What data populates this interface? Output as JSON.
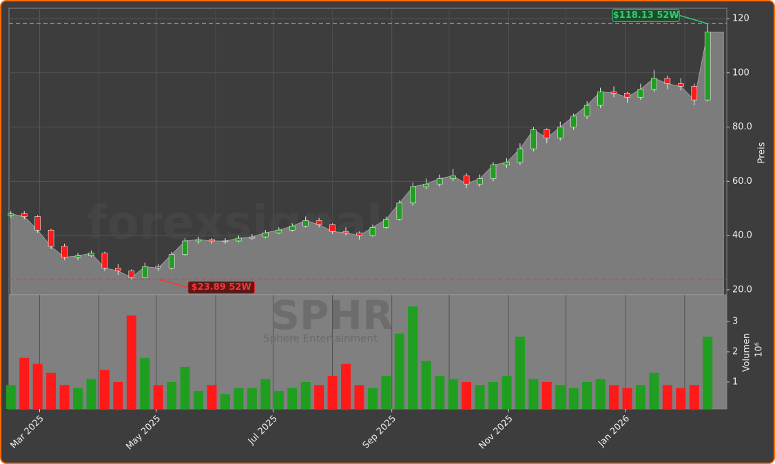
{
  "chart_data": {
    "type": "candlestick",
    "watermark": "forexsignale.trade",
    "symbol": "SPHR",
    "company": "Sphere Entertainment",
    "y_label": "Preis",
    "volume_label": "Volumen",
    "volume_offset_label": "10⁶",
    "up_color": "#1f9e1f",
    "down_color": "#ff1a1a",
    "fill_color": "#808080",
    "grid": true,
    "x": [
      "2025-02-14",
      "2025-02-21",
      "2025-02-28",
      "2025-03-07",
      "2025-03-14",
      "2025-03-21",
      "2025-03-28",
      "2025-04-04",
      "2025-04-11",
      "2025-04-18",
      "2025-04-25",
      "2025-05-02",
      "2025-05-09",
      "2025-05-16",
      "2025-05-23",
      "2025-05-30",
      "2025-06-06",
      "2025-06-13",
      "2025-06-20",
      "2025-06-27",
      "2025-07-04",
      "2025-07-11",
      "2025-07-18",
      "2025-07-25",
      "2025-08-01",
      "2025-08-08",
      "2025-08-15",
      "2025-08-22",
      "2025-08-29",
      "2025-09-05",
      "2025-09-12",
      "2025-09-19",
      "2025-09-26",
      "2025-10-03",
      "2025-10-10",
      "2025-10-17",
      "2025-10-24",
      "2025-10-31",
      "2025-11-07",
      "2025-11-14",
      "2025-11-21",
      "2025-11-28",
      "2025-12-05",
      "2025-12-12",
      "2025-12-19",
      "2025-12-26",
      "2026-01-02",
      "2026-01-09",
      "2026-01-16",
      "2026-01-23",
      "2026-01-30",
      "2026-02-06",
      "2026-02-13"
    ],
    "open": [
      47.5,
      48,
      47,
      42,
      36,
      32,
      32.5,
      33.5,
      28,
      27,
      24.5,
      28.5,
      28,
      33,
      38,
      38.5,
      38,
      38,
      39,
      39.5,
      41,
      42,
      43.5,
      45.5,
      44,
      41.5,
      41,
      40,
      43,
      46,
      52,
      58,
      59,
      61,
      62,
      59,
      61,
      66,
      67,
      72,
      79,
      76,
      80,
      84,
      88,
      93,
      92.5,
      91,
      94,
      98,
      96,
      95,
      90
    ],
    "high": [
      49,
      49,
      47.5,
      42.5,
      37,
      33.5,
      34.5,
      34,
      29.5,
      27.5,
      30,
      29.5,
      34,
      39,
      39.5,
      39,
      39,
      40,
      40.5,
      42,
      43,
      44.5,
      47,
      46.5,
      44.5,
      43,
      41.5,
      44,
      47,
      53,
      59.5,
      61,
      62.5,
      64.5,
      63,
      62.5,
      67,
      68.5,
      74,
      80,
      79.5,
      82,
      85,
      89.5,
      94.5,
      95,
      93,
      96,
      101,
      99,
      98,
      96,
      118.13
    ],
    "low": [
      46.5,
      46,
      41,
      35,
      31,
      31,
      32,
      27,
      25.5,
      23.89,
      24.5,
      27,
      27.5,
      32.5,
      37,
      37,
      37,
      37.5,
      38.5,
      39,
      40.5,
      41.5,
      43,
      43,
      40.5,
      40,
      38.5,
      39.5,
      42.5,
      45.5,
      51,
      57,
      58,
      60,
      57.5,
      58,
      60,
      65,
      66,
      71,
      74,
      75,
      79,
      83,
      87,
      91,
      89,
      90,
      93,
      94,
      93.5,
      88,
      89.5
    ],
    "close": [
      48,
      47,
      42,
      36,
      32,
      32.5,
      33.5,
      28,
      27,
      24.5,
      28.5,
      28,
      33,
      38,
      38.5,
      38,
      38,
      39,
      39.5,
      41,
      42,
      43.5,
      45.5,
      44,
      41.5,
      41,
      40,
      43,
      46,
      52,
      58,
      59,
      61,
      62,
      59,
      61,
      66,
      67,
      72,
      79,
      76,
      80,
      84,
      88,
      93,
      92.5,
      91,
      94,
      98,
      96,
      95,
      90,
      115
    ],
    "volume": [
      0.9,
      1.8,
      1.6,
      1.3,
      0.9,
      0.8,
      1.1,
      1.4,
      1.0,
      3.2,
      1.8,
      0.9,
      1.0,
      1.5,
      0.7,
      0.9,
      0.6,
      0.8,
      0.8,
      1.1,
      0.7,
      0.8,
      1.0,
      0.9,
      1.2,
      1.6,
      0.9,
      0.8,
      1.2,
      2.6,
      3.5,
      1.7,
      1.2,
      1.1,
      1.0,
      0.9,
      1.0,
      1.2,
      2.5,
      1.1,
      1.0,
      0.9,
      0.8,
      1.0,
      1.1,
      0.9,
      0.8,
      0.9,
      1.3,
      0.9,
      0.8,
      0.9,
      2.5
    ],
    "xlim": [
      "2025-02-13",
      "2026-02-23"
    ],
    "xticks": [
      {
        "value": "2025-03-01",
        "label": "Mar 2025"
      },
      {
        "value": "2025-05-01",
        "label": "May 2025"
      },
      {
        "value": "2025-07-01",
        "label": "Jul 2025"
      },
      {
        "value": "2025-09-01",
        "label": "Sep 2025"
      },
      {
        "value": "2025-11-01",
        "label": "Nov 2025"
      },
      {
        "value": "2026-01-01",
        "label": "Jan 2026"
      }
    ],
    "xminorticks": [
      "2025-04-01",
      "2025-06-01",
      "2025-08-01",
      "2025-10-01",
      "2025-12-01",
      "2026-02-01"
    ],
    "ylim": [
      18.2,
      123.8
    ],
    "yticks": [
      {
        "value": 20,
        "label": "20.0"
      },
      {
        "value": 40,
        "label": "40.0"
      },
      {
        "value": 60,
        "label": "60.0"
      },
      {
        "value": 80,
        "label": "80.0"
      },
      {
        "value": 100,
        "label": "100"
      },
      120
    ],
    "volume_ylim": [
      0.11,
      3.89
    ],
    "volume_yticks": [
      1,
      2,
      3
    ],
    "annotations": [
      {
        "label": "$118.13 52W",
        "value": 118.13,
        "x": "2026-02-13",
        "color": "#2ecc71"
      },
      {
        "label": "$23.89 52W",
        "value": 23.89,
        "x": "2025-05-02",
        "color": "#ff3333"
      }
    ]
  }
}
